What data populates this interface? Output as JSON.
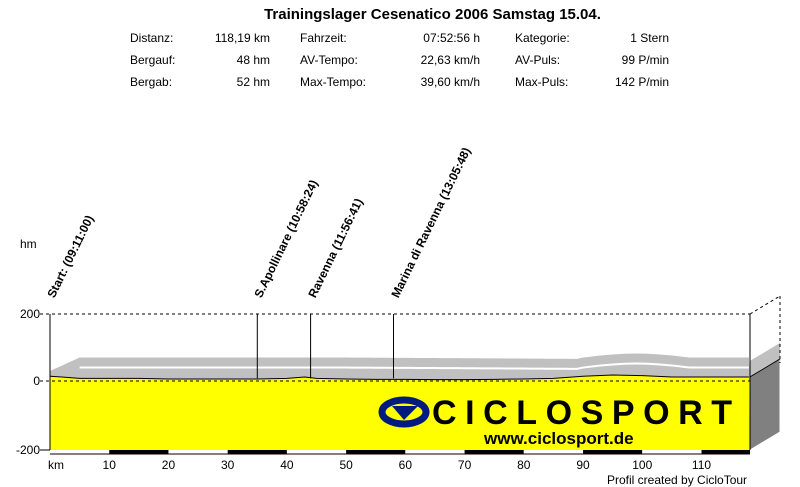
{
  "title": "Trainingslager Cesenatico 2006 Samstag 15.04.",
  "stats": [
    [
      {
        "label": "Distanz:",
        "value": "118,19 km"
      },
      {
        "label": "Fahrzeit:",
        "value": "07:52:56 h"
      },
      {
        "label": "Kategorie:",
        "value": "1 Stern"
      }
    ],
    [
      {
        "label": "Bergauf:",
        "value": "48 hm"
      },
      {
        "label": "AV-Tempo:",
        "value": "22,63 km/h"
      },
      {
        "label": "AV-Puls:",
        "value": "99 P/min"
      }
    ],
    [
      {
        "label": "Bergab:",
        "value": "52 hm"
      },
      {
        "label": "Max-Tempo:",
        "value": "39,60 km/h"
      },
      {
        "label": "Max-Puls:",
        "value": "142 P/min"
      }
    ]
  ],
  "footer": "Profil created by CicloTour",
  "logo": {
    "brand": "CICLOSPORT",
    "url": "www.ciclosport.de"
  },
  "colors": {
    "fill": "#ffff00",
    "band": "#c0c0c0",
    "side": "#808080",
    "logo": "#001a80"
  },
  "chart_data": {
    "type": "area",
    "title": "Trainingslager Cesenatico 2006 Samstag 15.04.",
    "xlabel": "km",
    "ylabel": "hm",
    "xlim": [
      0,
      118.19
    ],
    "ylim": [
      -200,
      200
    ],
    "yticks": [
      "200",
      "0",
      "-200"
    ],
    "xticks": [
      "km",
      "10",
      "20",
      "30",
      "40",
      "50",
      "60",
      "70",
      "80",
      "90",
      "100",
      "110"
    ],
    "waypoints": [
      {
        "km": 0,
        "label": "Start: (09:11:00)"
      },
      {
        "km": 35,
        "label": "S.Apollinare (10:58:24)"
      },
      {
        "km": 44,
        "label": "Ravenna (11:56:41)"
      },
      {
        "km": 58,
        "label": "Marina di Ravenna (13:05:48)"
      }
    ],
    "profile": {
      "km": [
        0,
        2,
        5,
        10,
        15,
        20,
        25,
        30,
        35,
        40,
        43,
        45,
        50,
        55,
        60,
        65,
        70,
        75,
        80,
        85,
        90,
        95,
        100,
        105,
        110,
        118
      ],
      "hm": [
        14,
        12,
        8,
        8,
        8,
        6,
        6,
        6,
        6,
        8,
        12,
        8,
        6,
        5,
        5,
        4,
        4,
        5,
        6,
        8,
        14,
        18,
        16,
        12,
        12,
        12
      ]
    }
  }
}
